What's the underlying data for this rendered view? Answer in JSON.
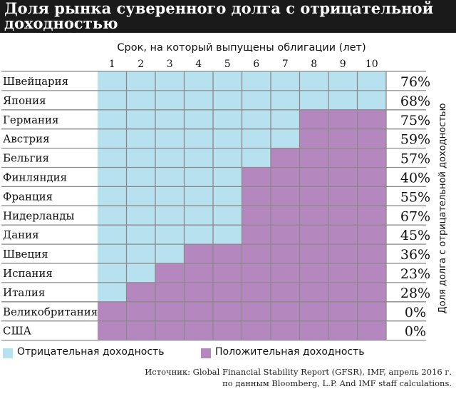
{
  "title": "Доля рынка суверенного долга с отрицательной доходностью",
  "source_lines": [
    "Источник: Global Financial Stability Report (GFSR), IMF, апрель 2016 г.",
    "по данным Bloomberg, L.P. And IMF staff calculations."
  ],
  "legend": {
    "negative": "Отрицательная доходность",
    "positive": "Положительная доходность"
  },
  "colors": {
    "negative": "#b8e1f0",
    "positive": "#b587bf",
    "grid": "#8a8a8a",
    "title_bg": "#1a1a1a"
  },
  "chart_data": {
    "type": "heatmap",
    "xlabel": "Срок, на который выпущены облигации (лет)",
    "ylabel": "Доля долга с отрицательной доходностью",
    "x": [
      "1",
      "2",
      "3",
      "4",
      "5",
      "6",
      "7",
      "8",
      "9",
      "10"
    ],
    "rows": [
      {
        "country": "Швейцария",
        "negative_years": 10,
        "share": "76%"
      },
      {
        "country": "Япония",
        "negative_years": 10,
        "share": "68%"
      },
      {
        "country": "Германия",
        "negative_years": 7,
        "share": "75%"
      },
      {
        "country": "Австрия",
        "negative_years": 7,
        "share": "59%"
      },
      {
        "country": "Бельгия",
        "negative_years": 6,
        "share": "57%"
      },
      {
        "country": "Финляндия",
        "negative_years": 5,
        "share": "40%"
      },
      {
        "country": "Франция",
        "negative_years": 5,
        "share": "55%"
      },
      {
        "country": "Нидерланды",
        "negative_years": 5,
        "share": "67%"
      },
      {
        "country": "Дания",
        "negative_years": 5,
        "share": "45%"
      },
      {
        "country": "Швеция",
        "negative_years": 3,
        "share": "36%"
      },
      {
        "country": "Испания",
        "negative_years": 2,
        "share": "23%"
      },
      {
        "country": "Италия",
        "negative_years": 1,
        "share": "28%"
      },
      {
        "country": "Великобритания",
        "negative_years": 0,
        "share": "0%"
      },
      {
        "country": "США",
        "negative_years": 0,
        "share": "0%"
      }
    ]
  }
}
